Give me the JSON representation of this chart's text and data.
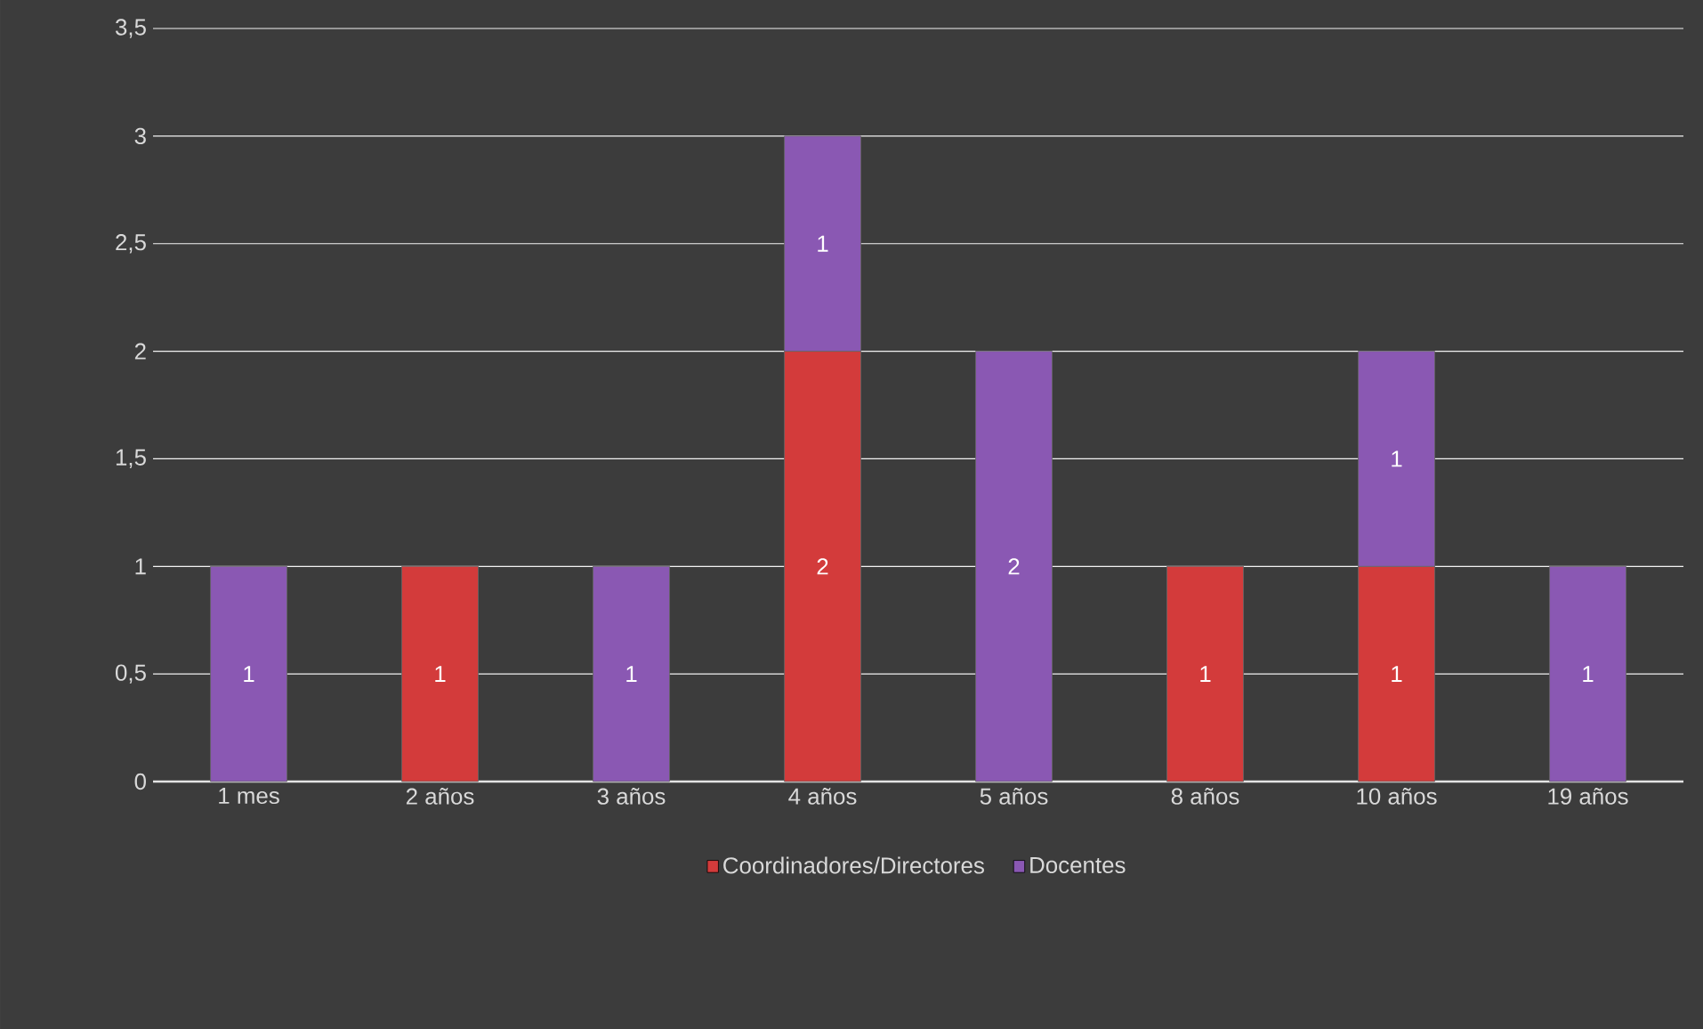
{
  "chart_data": {
    "type": "bar",
    "stacked": true,
    "categories": [
      "1 mes",
      "2 años",
      "3 años",
      "4 años",
      "5 años",
      "8 años",
      "10 años",
      "19 años"
    ],
    "series": [
      {
        "name": "Coordinadores/Directores",
        "color": "#d33b3b",
        "values": [
          null,
          1,
          null,
          2,
          null,
          1,
          1,
          null
        ],
        "value_labels": [
          null,
          "1",
          null,
          "2",
          null,
          "1",
          "1",
          null
        ]
      },
      {
        "name": "Docentes",
        "color": "#8a58b3",
        "values": [
          1,
          null,
          1,
          1,
          2,
          null,
          1,
          1
        ],
        "value_labels": [
          "1",
          null,
          "1",
          "1",
          "2",
          null,
          "1",
          "1"
        ]
      }
    ],
    "ylim": [
      0,
      3.5
    ],
    "yticks": [
      0,
      {
        "value": 0.5,
        "label": "0,5"
      },
      1,
      {
        "value": 1.5,
        "label": "1,5"
      },
      2,
      {
        "value": 2.5,
        "label": "2,5"
      },
      3,
      {
        "value": 3.5,
        "label": "3,5"
      }
    ],
    "grid": "y",
    "legend": "bottom"
  }
}
